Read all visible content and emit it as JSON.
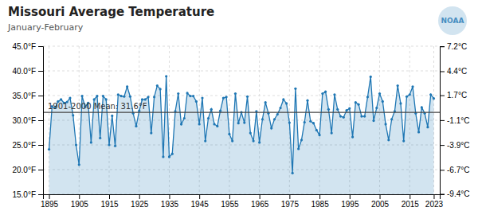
{
  "chart_data": {
    "type": "area",
    "title": "Missouri Average Temperature",
    "subtitle": "January-February",
    "annotations": [
      {
        "text": "1901-2000 Mean: 31.6°F",
        "y": 31.6
      },
      {
        "text": "NOAA"
      }
    ],
    "x": [
      1895,
      1896,
      1897,
      1898,
      1899,
      1900,
      1901,
      1902,
      1903,
      1904,
      1905,
      1906,
      1907,
      1908,
      1909,
      1910,
      1911,
      1912,
      1913,
      1914,
      1915,
      1916,
      1917,
      1918,
      1919,
      1920,
      1921,
      1922,
      1923,
      1924,
      1925,
      1926,
      1927,
      1928,
      1929,
      1930,
      1931,
      1932,
      1933,
      1934,
      1935,
      1936,
      1937,
      1938,
      1939,
      1940,
      1941,
      1942,
      1943,
      1944,
      1945,
      1946,
      1947,
      1948,
      1949,
      1950,
      1951,
      1952,
      1953,
      1954,
      1955,
      1956,
      1957,
      1958,
      1959,
      1960,
      1961,
      1962,
      1963,
      1964,
      1965,
      1966,
      1967,
      1968,
      1969,
      1970,
      1971,
      1972,
      1973,
      1974,
      1975,
      1976,
      1977,
      1978,
      1979,
      1980,
      1981,
      1982,
      1983,
      1984,
      1985,
      1986,
      1987,
      1988,
      1989,
      1990,
      1991,
      1992,
      1993,
      1994,
      1995,
      1996,
      1997,
      1998,
      1999,
      2000,
      2001,
      2002,
      2003,
      2004,
      2005,
      2006,
      2007,
      2008,
      2009,
      2010,
      2011,
      2012,
      2013,
      2014,
      2015,
      2016,
      2017,
      2018,
      2019,
      2020,
      2021,
      2022,
      2023
    ],
    "values": [
      24.1,
      32.8,
      32.5,
      33.8,
      34.2,
      33.5,
      33.7,
      34.5,
      31.0,
      25.0,
      21.0,
      34.9,
      32.7,
      33.5,
      25.5,
      34.2,
      34.9,
      26.4,
      34.9,
      34.2,
      25.0,
      30.9,
      24.8,
      35.2,
      34.9,
      34.8,
      36.8,
      34.8,
      31.4,
      28.8,
      31.9,
      34.2,
      34.2,
      34.7,
      27.4,
      34.7,
      37.0,
      36.3,
      22.6,
      38.9,
      22.6,
      23.2,
      31.8,
      35.4,
      29.2,
      30.4,
      35.5,
      34.9,
      34.9,
      33.8,
      29.2,
      34.5,
      25.8,
      30.4,
      32.2,
      29.2,
      28.8,
      31.9,
      34.5,
      34.7,
      27.2,
      25.8,
      35.4,
      29.4,
      31.6,
      29.5,
      34.8,
      27.4,
      25.8,
      31.8,
      25.5,
      30.2,
      33.6,
      31.4,
      28.4,
      30.2,
      31.2,
      32.5,
      34.2,
      33.4,
      29.5,
      19.3,
      36.4,
      24.2,
      26.0,
      29.6,
      34.0,
      29.8,
      29.4,
      28.0,
      27.0,
      35.4,
      35.8,
      32.2,
      27.4,
      35.2,
      32.2,
      30.8,
      30.6,
      32.0,
      32.4,
      26.6,
      33.6,
      33.2,
      30.8,
      30.8,
      34.7,
      38.8,
      29.9,
      32.5,
      35.4,
      33.8,
      29.2,
      26.0,
      30.2,
      31.8,
      37.0,
      33.4,
      25.8,
      34.8,
      35.2,
      36.8,
      31.4,
      27.6,
      32.6,
      31.4,
      28.6,
      35.2,
      34.4
    ],
    "xlim": [
      1893,
      2025
    ],
    "xticks": [
      1895,
      1905,
      1915,
      1925,
      1935,
      1945,
      1955,
      1965,
      1975,
      1985,
      1995,
      2005,
      2015,
      2023
    ],
    "ylim": [
      15.0,
      45.0
    ],
    "yticks": [
      {
        "value": 15.0,
        "label": "15.0°F"
      },
      {
        "value": 20.0,
        "label": "20.0°F"
      },
      {
        "value": 25.0,
        "label": "25.0°F"
      },
      {
        "value": 30.0,
        "label": "30.0°F"
      },
      {
        "value": 35.0,
        "label": "35.0°F"
      },
      {
        "value": 40.0,
        "label": "40.0°F"
      },
      {
        "value": 45.0,
        "label": "45.0°F"
      }
    ],
    "y2lim": [
      15.0,
      45.0
    ],
    "y2ticks": [
      {
        "value": 44.96,
        "label": "7.2°C"
      },
      {
        "value": 39.92,
        "label": "4.4°C"
      },
      {
        "value": 35.06,
        "label": "1.7°C"
      },
      {
        "value": 30.02,
        "label": "-1.1°C"
      },
      {
        "value": 24.98,
        "label": "-3.9°C"
      },
      {
        "value": 19.94,
        "label": "-6.7°C"
      },
      {
        "value": 15.08,
        "label": "-9.4°C"
      }
    ],
    "grid": true
  }
}
